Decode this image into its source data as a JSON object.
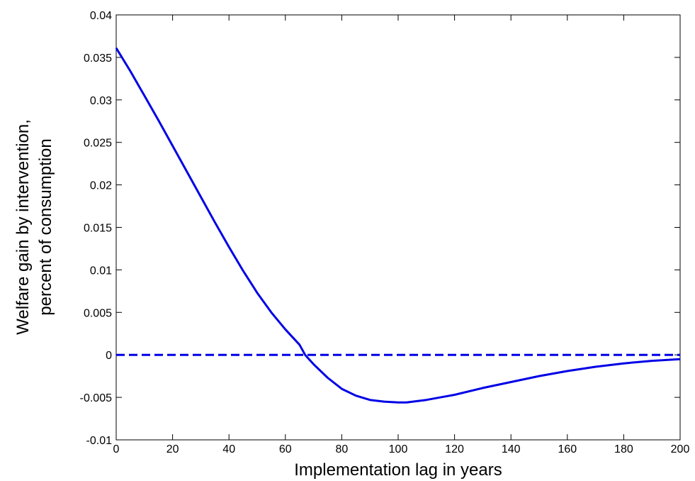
{
  "chart_data": {
    "type": "line",
    "title": "",
    "xlabel": "Implementation lag in years",
    "ylabel_lines": [
      "Welfare gain by intervention,",
      "percent of consumption"
    ],
    "xlim": [
      0,
      200
    ],
    "ylim": [
      -0.01,
      0.04
    ],
    "xticks": [
      0,
      20,
      40,
      60,
      80,
      100,
      120,
      140,
      160,
      180,
      200
    ],
    "xtick_labels": [
      "0",
      "20",
      "40",
      "60",
      "80",
      "100",
      "120",
      "140",
      "160",
      "180",
      "200"
    ],
    "yticks": [
      -0.01,
      -0.005,
      0,
      0.005,
      0.01,
      0.015,
      0.02,
      0.025,
      0.03,
      0.035,
      0.04
    ],
    "ytick_labels": [
      "-0.01",
      "-0.005",
      "0",
      "0.005",
      "0.01",
      "0.015",
      "0.02",
      "0.025",
      "0.03",
      "0.035",
      "0.04"
    ],
    "grid": false,
    "series": [
      {
        "color": "#0000e6",
        "style": "solid",
        "x": [
          0,
          5,
          10,
          15,
          20,
          25,
          30,
          35,
          40,
          45,
          50,
          55,
          60,
          65,
          67,
          70,
          75,
          80,
          85,
          90,
          95,
          100,
          103,
          110,
          120,
          130,
          140,
          150,
          160,
          170,
          180,
          190,
          200
        ],
        "y": [
          0.0361,
          0.0334,
          0.0305,
          0.0276,
          0.0246,
          0.0216,
          0.0186,
          0.0156,
          0.0127,
          0.0099,
          0.0073,
          0.005,
          0.003,
          0.0012,
          0.0,
          -0.0011,
          -0.0027,
          -0.004,
          -0.0048,
          -0.0053,
          -0.0055,
          -0.0056,
          -0.0056,
          -0.0053,
          -0.0047,
          -0.0039,
          -0.0032,
          -0.0025,
          -0.0019,
          -0.0014,
          -0.001,
          -0.0007,
          -0.0005
        ]
      },
      {
        "color": "#0000e6",
        "style": "dashed",
        "x": [
          0,
          200
        ],
        "y": [
          0,
          0
        ]
      }
    ]
  }
}
